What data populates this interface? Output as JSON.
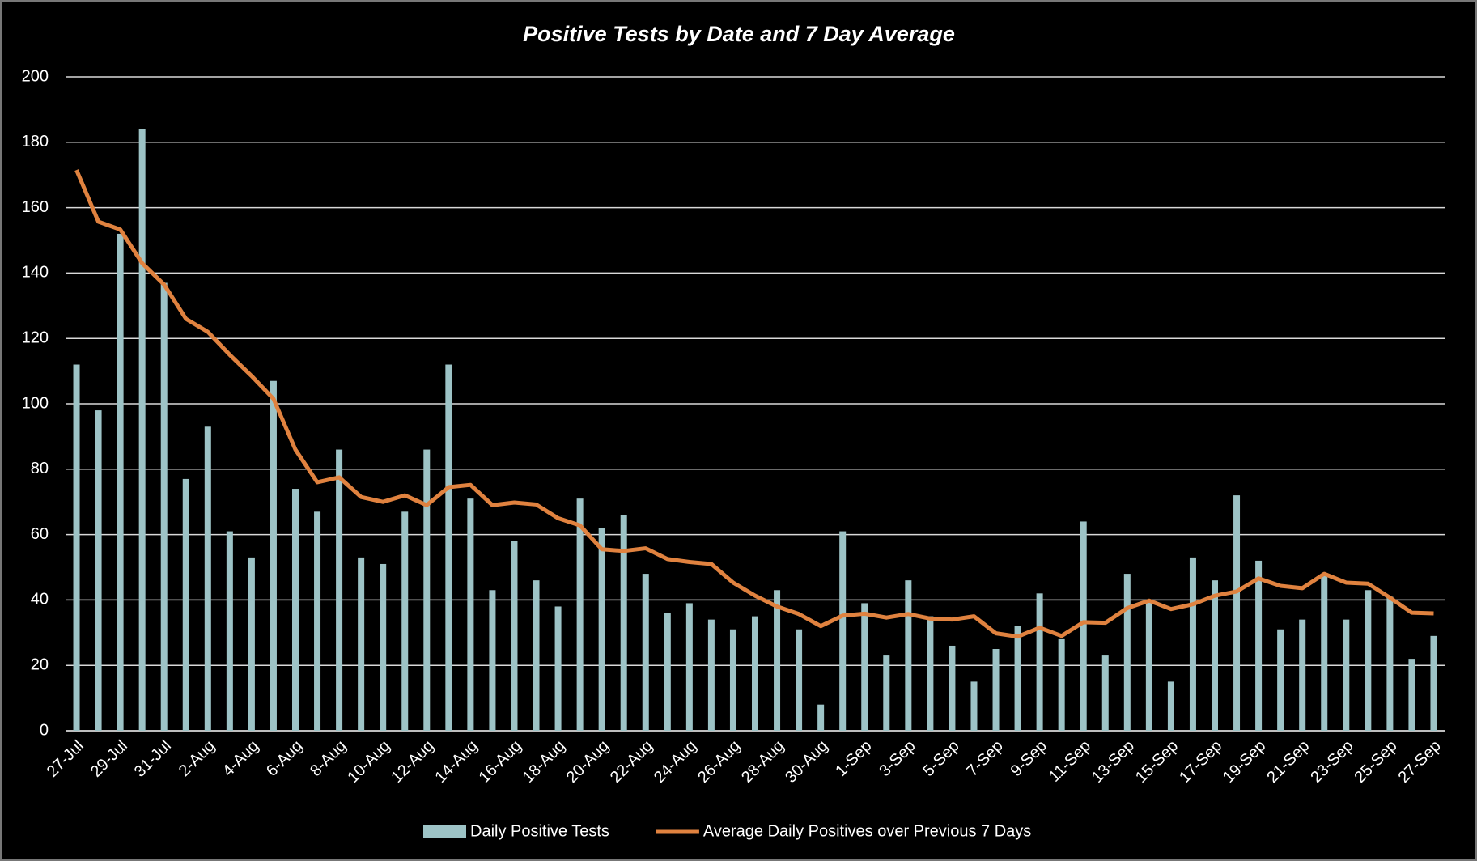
{
  "chart_data": {
    "type": "combo",
    "title": "Positive Tests by Date and 7 Day Average",
    "categories": [
      "27-Jul",
      null,
      "29-Jul",
      null,
      "31-Jul",
      null,
      "2-Aug",
      null,
      "4-Aug",
      null,
      "6-Aug",
      null,
      "8-Aug",
      null,
      "10-Aug",
      null,
      "12-Aug",
      null,
      "14-Aug",
      null,
      "16-Aug",
      null,
      "18-Aug",
      null,
      "20-Aug",
      null,
      "22-Aug",
      null,
      "24-Aug",
      null,
      "26-Aug",
      null,
      "28-Aug",
      null,
      "30-Aug",
      null,
      "1-Sep",
      null,
      "3-Sep",
      null,
      "5-Sep",
      null,
      "7-Sep",
      null,
      "9-Sep",
      null,
      "11-Sep",
      null,
      "13-Sep",
      null,
      "15-Sep",
      null,
      "17-Sep",
      null,
      "19-Sep",
      null,
      "21-Sep",
      null,
      "23-Sep",
      null,
      "25-Sep",
      null,
      "27-Sep"
    ],
    "series": [
      {
        "name": "Daily Positive Tests",
        "type": "bar",
        "color": "#9dc3c6",
        "values": [
          112,
          98,
          152,
          184,
          137,
          77,
          93,
          61,
          53,
          107,
          74,
          67,
          86,
          53,
          51,
          67,
          86,
          112,
          71,
          43,
          58,
          46,
          38,
          71,
          62,
          66,
          48,
          36,
          39,
          34,
          31,
          35,
          43,
          31,
          8,
          61,
          39,
          23,
          46,
          35,
          26,
          15,
          25,
          32,
          42,
          28,
          64,
          23,
          48,
          40,
          15,
          53,
          46,
          72,
          52,
          31,
          34,
          48,
          34,
          43,
          41,
          22,
          29
        ]
      },
      {
        "name": "Average Daily Positives over Previous 7 Days",
        "type": "line",
        "color": "#e0823f",
        "values": [
          171.5,
          155.7,
          153.3,
          143,
          136.5,
          126,
          122,
          115,
          108.5,
          101.5,
          86,
          76,
          77.5,
          71.5,
          70,
          72,
          69,
          74.5,
          75.2,
          69,
          69.8,
          69.2,
          65,
          62.8,
          55.5,
          55,
          55.8,
          52.5,
          51.6,
          51,
          45.3,
          41.3,
          38,
          35.7,
          32,
          35.2,
          35.8,
          34.6,
          35.7,
          34.3,
          34,
          35,
          29.8,
          28.8,
          31.5,
          29,
          33.2,
          33,
          37.5,
          39.8,
          37.2,
          38.7,
          41.3,
          42.6,
          46.6,
          44.3,
          43.6,
          48,
          45.3,
          45,
          40.7,
          36.1,
          35.9
        ]
      }
    ],
    "ylim": [
      0,
      200
    ],
    "yticks": [
      0,
      20,
      40,
      60,
      80,
      100,
      120,
      140,
      160,
      180,
      200
    ],
    "grid": true,
    "legend": "bottom"
  }
}
